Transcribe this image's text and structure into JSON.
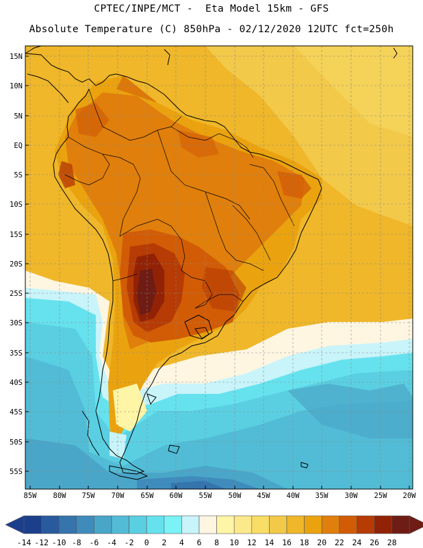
{
  "header": {
    "title_line1": "CPTEC/INPE/MCT -  Eta Model 15km - GFS",
    "title_line2": "Absolute Temperature (C) 850hPa - 02/12/2020 12UTC fct=250h"
  },
  "map": {
    "lat_labels": [
      "15N",
      "10N",
      "5N",
      "EQ",
      "5S",
      "10S",
      "15S",
      "20S",
      "25S",
      "30S",
      "35S",
      "40S",
      "45S",
      "50S",
      "55S"
    ],
    "lon_labels": [
      "85W",
      "80W",
      "75W",
      "70W",
      "65W",
      "60W",
      "55W",
      "50W",
      "45W",
      "40W",
      "35W",
      "30W",
      "25W",
      "20W"
    ]
  },
  "colorbar": {
    "labels": [
      "-14",
      "-12",
      "-10",
      "-8",
      "-6",
      "-4",
      "-2",
      "0",
      "2",
      "4",
      "6",
      "8",
      "10",
      "12",
      "14",
      "16",
      "18",
      "20",
      "22",
      "24",
      "26",
      "28"
    ],
    "colors": [
      "#1c3f8c",
      "#2a5a9e",
      "#3574ad",
      "#3f8cbc",
      "#4aa6c9",
      "#52bcd6",
      "#5acfe2",
      "#66e2ee",
      "#7af2f6",
      "#c8f4fa",
      "#fff6e2",
      "#fff5a6",
      "#fbe98c",
      "#f8dd66",
      "#f3c94a",
      "#efb729",
      "#eaa30f",
      "#e07f0b",
      "#d25c06",
      "#b63b04",
      "#922205",
      "#6e1c14"
    ]
  }
}
